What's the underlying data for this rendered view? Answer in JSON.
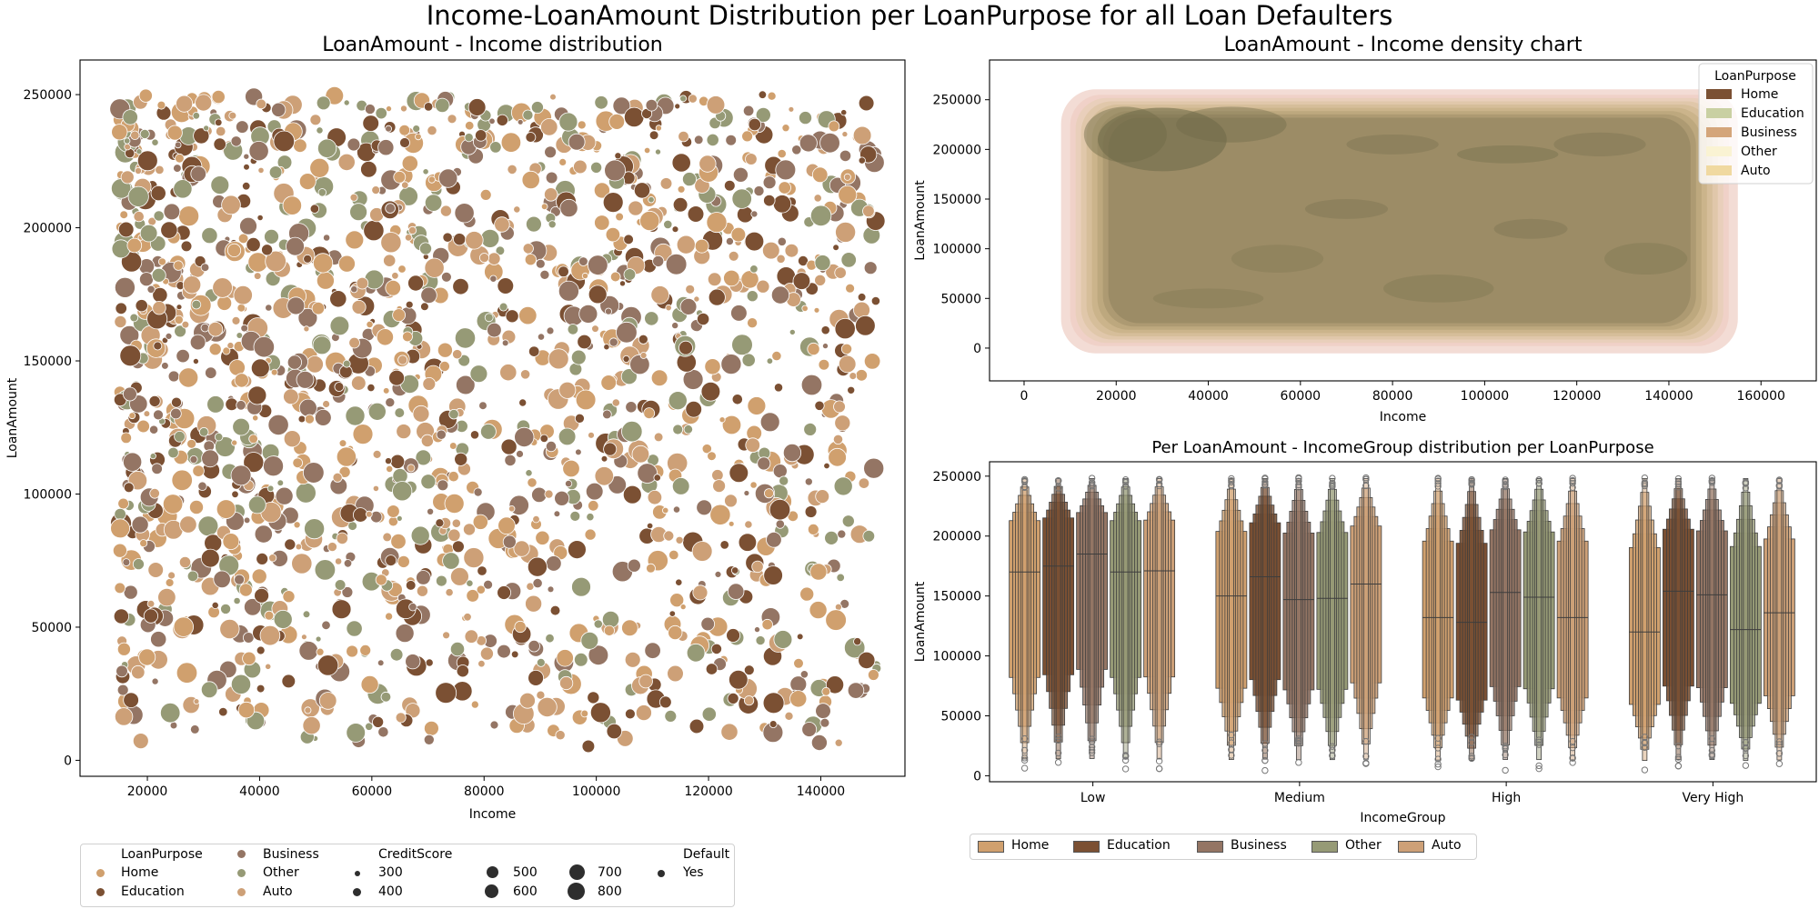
{
  "suptitle": "Income-LoanAmount Distribution per LoanPurpose for all Loan Defaulters",
  "colors": {
    "Home": "#D0A06E",
    "Education": "#7B5033",
    "Business": "#947564",
    "Other": "#969A76",
    "Auto": "#CDA077"
  },
  "chart_data": [
    {
      "type": "scatter",
      "title": "LoanAmount - Income distribution",
      "xlabel": "Income",
      "ylabel": "LoanAmount",
      "xlim": [
        8000,
        155000
      ],
      "ylim": [
        -6000,
        263000
      ],
      "xticks": [
        20000,
        40000,
        60000,
        80000,
        100000,
        120000,
        140000
      ],
      "yticks": [
        0,
        50000,
        100000,
        150000,
        200000,
        250000
      ],
      "hue": "LoanPurpose",
      "size": "CreditScore",
      "style": "Default",
      "categories": [
        "Home",
        "Education",
        "Business",
        "Other",
        "Auto"
      ],
      "income_range": [
        15000,
        150000
      ],
      "loan_range": [
        5000,
        250000
      ],
      "creditscore_range": [
        300,
        850
      ],
      "n_points": 1800,
      "grid": false
    },
    {
      "type": "density",
      "title": "LoanAmount - Income density chart",
      "xlabel": "Income",
      "ylabel": "LoanAmount",
      "xlim": [
        -7500,
        172000
      ],
      "ylim": [
        -33000,
        290000
      ],
      "xticks": [
        0,
        20000,
        40000,
        60000,
        80000,
        100000,
        120000,
        140000,
        160000
      ],
      "yticks": [
        0,
        50000,
        100000,
        150000,
        200000,
        250000
      ],
      "legend_title": "LoanPurpose",
      "legend_loc": "upper right",
      "series": [
        {
          "name": "Home",
          "color": "#7B5033"
        },
        {
          "name": "Education",
          "color": "#C9D0A2"
        },
        {
          "name": "Business",
          "color": "#D4A57A"
        },
        {
          "name": "Other",
          "color": "#FAF3D3"
        },
        {
          "name": "Auto",
          "color": "#F0D9A0"
        }
      ]
    },
    {
      "type": "boxen",
      "title": "Per LoanAmount - IncomeGroup distribution per LoanPurpose",
      "xlabel": "IncomeGroup",
      "ylabel": "LoanAmount",
      "ylim": [
        -5000,
        262000
      ],
      "yticks": [
        0,
        50000,
        100000,
        150000,
        200000,
        250000
      ],
      "categories": [
        "Low",
        "Medium",
        "High",
        "Very High"
      ],
      "legend_loc": "below",
      "series": [
        {
          "name": "Home",
          "medians": [
            170000,
            150000,
            132000,
            120000
          ]
        },
        {
          "name": "Education",
          "medians": [
            175000,
            166000,
            128000,
            154000
          ]
        },
        {
          "name": "Business",
          "medians": [
            185000,
            147000,
            153000,
            151000
          ]
        },
        {
          "name": "Other",
          "medians": [
            170000,
            148000,
            149000,
            122000
          ]
        },
        {
          "name": "Auto",
          "medians": [
            171000,
            160000,
            132000,
            136000
          ]
        }
      ]
    }
  ],
  "scatter_legend": {
    "hue_title": "LoanPurpose",
    "hue_items": [
      "Home",
      "Education",
      "Business",
      "Other",
      "Auto"
    ],
    "size_title": "CreditScore",
    "size_items": [
      "300",
      "400",
      "500",
      "600",
      "700",
      "800"
    ],
    "style_title": "Default",
    "style_items": [
      "Yes"
    ]
  }
}
